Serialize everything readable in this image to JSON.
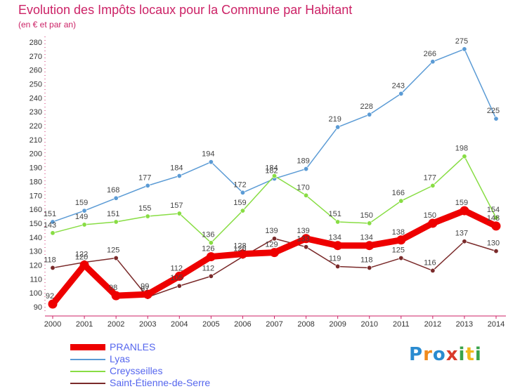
{
  "header": {
    "title": "Evolution des Impôts locaux pour la Commune par Habitant",
    "subtitle": "(en € et par an)"
  },
  "logo": {
    "text": "Proxiti"
  },
  "chart_data": {
    "type": "line",
    "title": "Evolution des Impôts locaux pour la Commune par Habitant",
    "subtitle": "(en € et par an)",
    "x": [
      "2000",
      "2001",
      "2002",
      "2003",
      "2004",
      "2005",
      "2006",
      "2007",
      "2008",
      "2009",
      "2010",
      "2011",
      "2012",
      "2013",
      "2014"
    ],
    "ylim": [
      90,
      280
    ],
    "yticks": [
      90,
      100,
      110,
      120,
      130,
      140,
      150,
      160,
      170,
      180,
      190,
      200,
      210,
      220,
      230,
      240,
      250,
      260,
      270,
      280
    ],
    "grid": false,
    "legend_position": "bottom-left",
    "series": [
      {
        "name": "PRANLES",
        "color": "#ee0000",
        "values": [
          92,
          120,
          98,
          99,
          112,
          126,
          128,
          129,
          139,
          134,
          134,
          138,
          150,
          159,
          148
        ]
      },
      {
        "name": "Lyas",
        "color": "#5b9bd5",
        "values": [
          151,
          159,
          168,
          177,
          184,
          194,
          172,
          182,
          189,
          219,
          228,
          243,
          266,
          275,
          225
        ]
      },
      {
        "name": "Creysseilles",
        "color": "#88dd44",
        "values": [
          143,
          149,
          151,
          155,
          157,
          136,
          159,
          184,
          170,
          151,
          150,
          166,
          177,
          198,
          154
        ]
      },
      {
        "name": "Saint-Étienne-de-Serre",
        "color": "#7a2a2a",
        "values": [
          118,
          122,
          125,
          97,
          105,
          112,
          126,
          139,
          133,
          119,
          118,
          125,
          116,
          137,
          130
        ]
      }
    ]
  }
}
